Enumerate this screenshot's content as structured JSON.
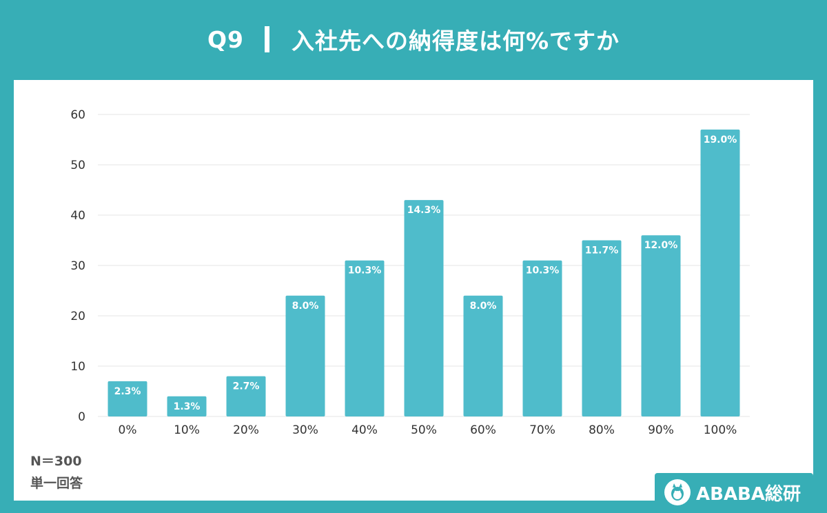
{
  "header": {
    "question_no": "Q9",
    "title": "入社先への納得度は何%ですか"
  },
  "notes": {
    "sample": "N＝300",
    "answer_type": "単一回答"
  },
  "logo": {
    "text": "ABABA総研",
    "icon": "alpaca-mascot-icon"
  },
  "colors": {
    "background": "#37aeb6",
    "bar": "#4fbccb",
    "grid": "#e6e6e6"
  },
  "chart_data": {
    "type": "bar",
    "categories": [
      "0%",
      "10%",
      "20%",
      "30%",
      "40%",
      "50%",
      "60%",
      "70%",
      "80%",
      "90%",
      "100%"
    ],
    "values": [
      7,
      4,
      8,
      24,
      31,
      43,
      24,
      31,
      35,
      36,
      57
    ],
    "data_labels": [
      "2.3%",
      "1.3%",
      "2.7%",
      "8.0%",
      "10.3%",
      "14.3%",
      "8.0%",
      "10.3%",
      "11.7%",
      "12.0%",
      "19.0%"
    ],
    "yticks": [
      0,
      10,
      20,
      30,
      40,
      50,
      60
    ],
    "ylim": [
      0,
      60
    ],
    "grid": true,
    "legend": "none",
    "xlabel": "",
    "ylabel": ""
  }
}
